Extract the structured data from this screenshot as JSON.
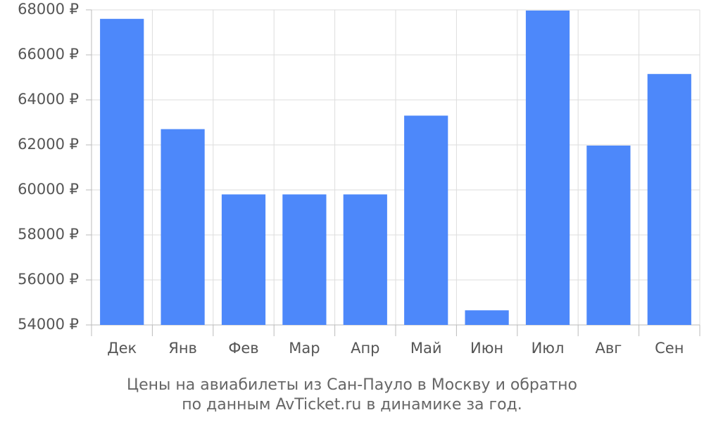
{
  "chart_data": {
    "type": "bar",
    "title": [
      "Цены на авиабилеты из Сан-Пауло в Москву и обратно",
      "по данным AvTicket.ru в динамике за год."
    ],
    "categories": [
      "Дек",
      "Янв",
      "Фев",
      "Мар",
      "Апр",
      "Май",
      "Июн",
      "Июл",
      "Авг",
      "Сен"
    ],
    "values": [
      67600,
      62700,
      59800,
      59800,
      59800,
      63300,
      54650,
      67970,
      61970,
      65150
    ],
    "color": "#4d88fa",
    "ylim": [
      54000,
      68000
    ],
    "yticks": [
      {
        "value": 54000,
        "label": "54000 ₽"
      },
      {
        "value": 56000,
        "label": "56000 ₽"
      },
      {
        "value": 58000,
        "label": "58000 ₽"
      },
      {
        "value": 60000,
        "label": "60000 ₽"
      },
      {
        "value": 62000,
        "label": "62000 ₽"
      },
      {
        "value": 64000,
        "label": "64000 ₽"
      },
      {
        "value": 66000,
        "label": "66000 ₽"
      },
      {
        "value": 68000,
        "label": "68000 ₽"
      }
    ],
    "grid": true
  }
}
